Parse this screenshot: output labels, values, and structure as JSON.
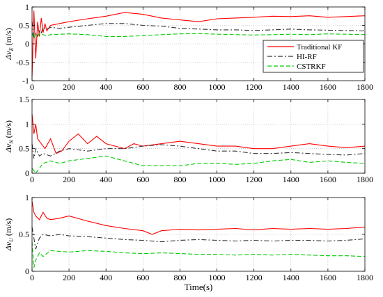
{
  "chart_data": [
    {
      "type": "line",
      "ylabel_main": "Δv",
      "ylabel_sub": "E",
      "ylabel_unit": " (m/s)",
      "xlim": [
        0,
        1800
      ],
      "ylim": [
        -1,
        1
      ],
      "x_ticks": [
        "0",
        "200",
        "400",
        "600",
        "800",
        "1000",
        "1200",
        "1400",
        "1600",
        "1800"
      ],
      "y_ticks": [
        "-1",
        "-0.5",
        "0",
        "0.5",
        "1"
      ],
      "grid": true,
      "legend_position": "inside-right",
      "series": [
        {
          "name": "Traditional KF",
          "color": "#ff0000",
          "dash": "",
          "x": [
            0,
            10,
            20,
            30,
            40,
            50,
            60,
            70,
            80,
            100,
            150,
            200,
            300,
            400,
            500,
            600,
            700,
            800,
            900,
            1000,
            1100,
            1200,
            1300,
            1400,
            1500,
            1600,
            1700,
            1800
          ],
          "y": [
            -0.9,
            0.9,
            -0.4,
            0.6,
            0.2,
            0.7,
            0.3,
            0.55,
            0.35,
            0.5,
            0.55,
            0.6,
            0.68,
            0.75,
            0.85,
            0.8,
            0.7,
            0.65,
            0.6,
            0.68,
            0.7,
            0.72,
            0.75,
            0.74,
            0.76,
            0.72,
            0.74,
            0.76
          ]
        },
        {
          "name": "HI-RF",
          "color": "#333333",
          "dash": "7,3,2,3",
          "x": [
            0,
            10,
            20,
            30,
            40,
            50,
            60,
            80,
            100,
            150,
            200,
            300,
            400,
            500,
            600,
            700,
            800,
            900,
            1000,
            1100,
            1200,
            1300,
            1400,
            1500,
            1600,
            1700,
            1800
          ],
          "y": [
            0.6,
            0.2,
            0.3,
            0.2,
            0.35,
            0.3,
            0.45,
            0.4,
            0.45,
            0.42,
            0.45,
            0.5,
            0.55,
            0.55,
            0.5,
            0.48,
            0.42,
            0.4,
            0.38,
            0.38,
            0.36,
            0.38,
            0.4,
            0.38,
            0.37,
            0.36,
            0.35
          ]
        },
        {
          "name": "CSTRKF",
          "color": "#00cc00",
          "dash": "6,3",
          "x": [
            0,
            10,
            20,
            30,
            40,
            60,
            80,
            100,
            200,
            300,
            400,
            500,
            600,
            700,
            800,
            900,
            1000,
            1100,
            1200,
            1300,
            1400,
            1500,
            1600,
            1700,
            1800
          ],
          "y": [
            0.3,
            0.15,
            0.25,
            0.2,
            0.28,
            0.25,
            0.22,
            0.25,
            0.27,
            0.25,
            0.2,
            0.2,
            0.22,
            0.25,
            0.27,
            0.28,
            0.26,
            0.25,
            0.24,
            0.25,
            0.26,
            0.25,
            0.27,
            0.26,
            0.25
          ]
        }
      ]
    },
    {
      "type": "line",
      "ylabel_main": "Δv",
      "ylabel_sub": "N",
      "ylabel_unit": " (m/s)",
      "xlim": [
        0,
        1800
      ],
      "ylim": [
        0,
        1.5
      ],
      "x_ticks": [
        "0",
        "200",
        "400",
        "600",
        "800",
        "1000",
        "1200",
        "1400",
        "1600",
        "1800"
      ],
      "y_ticks": [
        "0",
        "0.5",
        "1",
        "1.5"
      ],
      "grid": true,
      "series": [
        {
          "name": "",
          "color": "#ff0000",
          "dash": "",
          "x": [
            0,
            10,
            20,
            30,
            50,
            70,
            100,
            130,
            160,
            200,
            250,
            300,
            350,
            400,
            450,
            500,
            550,
            600,
            700,
            800,
            900,
            1000,
            1100,
            1200,
            1300,
            1400,
            1500,
            1600,
            1700,
            1800
          ],
          "y": [
            1.2,
            0.8,
            1.0,
            0.7,
            0.6,
            0.5,
            0.7,
            0.4,
            0.45,
            0.65,
            0.8,
            0.6,
            0.75,
            0.6,
            0.55,
            0.5,
            0.6,
            0.55,
            0.6,
            0.65,
            0.6,
            0.55,
            0.55,
            0.5,
            0.5,
            0.55,
            0.6,
            0.55,
            0.52,
            0.55
          ]
        },
        {
          "name": "",
          "color": "#333333",
          "dash": "7,3,2,3",
          "x": [
            0,
            10,
            20,
            40,
            60,
            100,
            150,
            200,
            300,
            400,
            500,
            600,
            700,
            800,
            900,
            1000,
            1100,
            1200,
            1300,
            1400,
            1500,
            1600,
            1700,
            1800
          ],
          "y": [
            0.6,
            0.3,
            0.5,
            0.35,
            0.4,
            0.35,
            0.45,
            0.5,
            0.45,
            0.5,
            0.5,
            0.55,
            0.58,
            0.55,
            0.5,
            0.45,
            0.45,
            0.4,
            0.4,
            0.42,
            0.4,
            0.38,
            0.37,
            0.4
          ]
        },
        {
          "name": "",
          "color": "#00cc00",
          "dash": "6,3",
          "x": [
            0,
            10,
            20,
            40,
            60,
            100,
            150,
            200,
            300,
            400,
            500,
            600,
            700,
            800,
            900,
            1000,
            1100,
            1200,
            1300,
            1400,
            1500,
            1600,
            1700,
            1800
          ],
          "y": [
            0.1,
            0.05,
            0.0,
            0.1,
            0.2,
            0.25,
            0.2,
            0.25,
            0.3,
            0.35,
            0.25,
            0.15,
            0.15,
            0.15,
            0.2,
            0.2,
            0.18,
            0.2,
            0.25,
            0.28,
            0.22,
            0.25,
            0.22,
            0.2
          ]
        }
      ]
    },
    {
      "type": "line",
      "ylabel_main": "Δv",
      "ylabel_sub": "U",
      "ylabel_unit": " (m/s)",
      "xlabel": "Time(s)",
      "xlim": [
        0,
        1800
      ],
      "ylim": [
        0,
        1
      ],
      "x_ticks": [
        "0",
        "200",
        "400",
        "600",
        "800",
        "1000",
        "1200",
        "1400",
        "1600",
        "1800"
      ],
      "y_ticks": [
        "0",
        "0.5",
        "1"
      ],
      "grid": true,
      "series": [
        {
          "name": "",
          "color": "#ff0000",
          "dash": "",
          "x": [
            0,
            10,
            20,
            40,
            60,
            80,
            100,
            150,
            200,
            300,
            400,
            500,
            600,
            650,
            700,
            800,
            900,
            1000,
            1100,
            1200,
            1300,
            1400,
            1500,
            1600,
            1700,
            1800
          ],
          "y": [
            0.95,
            0.8,
            0.75,
            0.7,
            0.8,
            0.72,
            0.7,
            0.72,
            0.75,
            0.68,
            0.62,
            0.58,
            0.55,
            0.5,
            0.55,
            0.57,
            0.56,
            0.57,
            0.58,
            0.56,
            0.58,
            0.57,
            0.58,
            0.57,
            0.58,
            0.6
          ]
        },
        {
          "name": "",
          "color": "#333333",
          "dash": "7,3,2,3",
          "x": [
            0,
            10,
            20,
            40,
            60,
            100,
            150,
            200,
            300,
            400,
            500,
            600,
            700,
            800,
            900,
            1000,
            1100,
            1200,
            1300,
            1400,
            1500,
            1600,
            1700,
            1800
          ],
          "y": [
            0.6,
            0.45,
            0.3,
            0.45,
            0.5,
            0.48,
            0.5,
            0.48,
            0.47,
            0.45,
            0.43,
            0.42,
            0.4,
            0.42,
            0.43,
            0.42,
            0.41,
            0.42,
            0.41,
            0.42,
            0.42,
            0.41,
            0.42,
            0.44
          ]
        },
        {
          "name": "",
          "color": "#00cc00",
          "dash": "6,3",
          "x": [
            0,
            10,
            20,
            40,
            60,
            100,
            150,
            200,
            300,
            400,
            500,
            600,
            700,
            800,
            900,
            1000,
            1100,
            1200,
            1300,
            1400,
            1500,
            1600,
            1700,
            1800
          ],
          "y": [
            0.4,
            0.05,
            0.15,
            0.25,
            0.2,
            0.28,
            0.27,
            0.26,
            0.28,
            0.27,
            0.25,
            0.24,
            0.25,
            0.24,
            0.23,
            0.23,
            0.22,
            0.23,
            0.22,
            0.23,
            0.22,
            0.21,
            0.21,
            0.2
          ]
        }
      ]
    }
  ]
}
